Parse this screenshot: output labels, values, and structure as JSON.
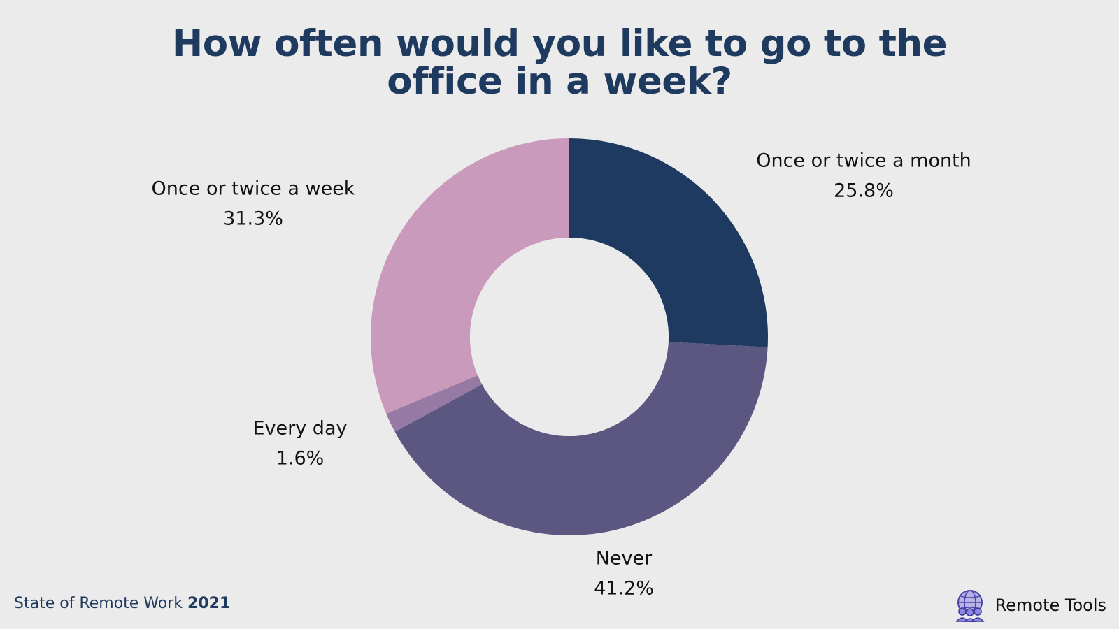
{
  "footer": {
    "source_prefix": "State of Remote Work ",
    "source_year": "2021",
    "brand_name": "Remote Tools"
  },
  "icons": {
    "brand_logo": "globe-people-icon"
  },
  "colors": {
    "background": "#ebebeb",
    "title": "#1f3a5f",
    "center_hole": "#ebebeb"
  },
  "chart_data": {
    "type": "pie",
    "variant": "donut",
    "title_lines": [
      "How often would you like to go to the",
      "office in a week?"
    ],
    "slices": [
      {
        "label": "Once or twice a month",
        "value": 25.8,
        "display": "25.8%",
        "color": "#1e3a60"
      },
      {
        "label": "Never",
        "value": 41.2,
        "display": "41.2%",
        "color": "#5c5780"
      },
      {
        "label": "Every day",
        "value": 1.6,
        "display": "1.6%",
        "color": "#977aa3"
      },
      {
        "label": "Once or twice a week",
        "value": 31.3,
        "display": "31.3%",
        "color": "#ca9abd"
      }
    ],
    "start_angle": "top",
    "direction": "clockwise"
  }
}
